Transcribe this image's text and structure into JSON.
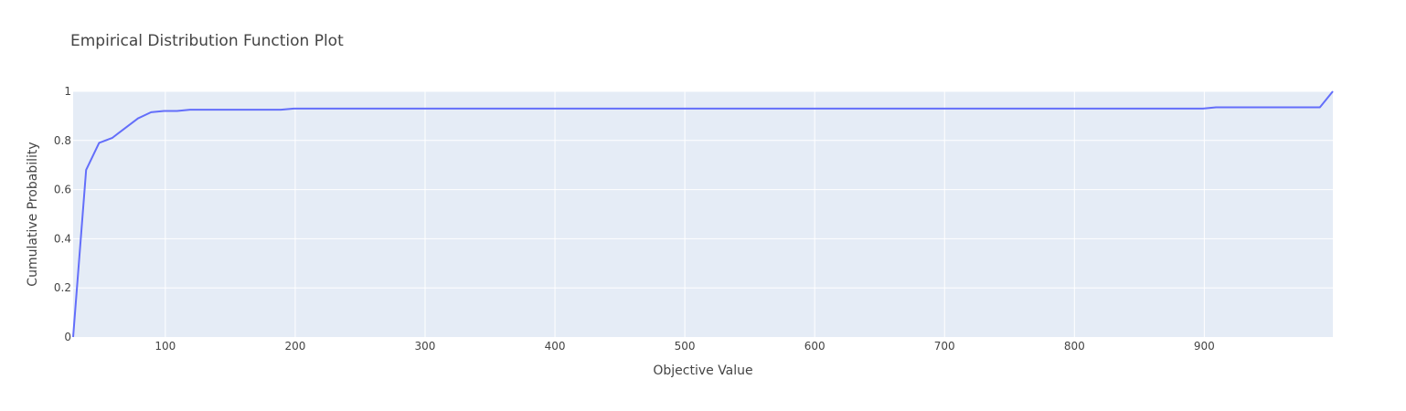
{
  "chart_data": {
    "type": "line",
    "title": "Empirical Distribution Function Plot",
    "xlabel": "Objective Value",
    "ylabel": "Cumulative Probability",
    "xlim": [
      29,
      999
    ],
    "ylim": [
      0,
      1
    ],
    "x_ticks": [
      100,
      200,
      300,
      400,
      500,
      600,
      700,
      800,
      900
    ],
    "y_ticks": [
      0,
      0.2,
      0.4,
      0.6,
      0.8,
      1
    ],
    "grid": true,
    "legend": "none",
    "series": [
      {
        "x": [
          29,
          39,
          49,
          59,
          69,
          79,
          89,
          99,
          109,
          119,
          129,
          139,
          149,
          159,
          169,
          179,
          189,
          199,
          209,
          219,
          229,
          239,
          249,
          259,
          269,
          279,
          289,
          299,
          309,
          319,
          329,
          339,
          349,
          359,
          369,
          379,
          389,
          399,
          409,
          419,
          429,
          439,
          449,
          459,
          469,
          479,
          489,
          499,
          509,
          519,
          529,
          539,
          549,
          559,
          569,
          579,
          589,
          599,
          609,
          619,
          629,
          639,
          649,
          659,
          669,
          679,
          689,
          699,
          709,
          719,
          729,
          739,
          749,
          759,
          769,
          779,
          789,
          799,
          809,
          819,
          829,
          839,
          849,
          859,
          869,
          879,
          889,
          899,
          909,
          919,
          929,
          939,
          949,
          959,
          969,
          979,
          989,
          999
        ],
        "y": [
          0.0,
          0.68,
          0.79,
          0.81,
          0.85,
          0.89,
          0.915,
          0.92,
          0.92,
          0.925,
          0.925,
          0.925,
          0.925,
          0.925,
          0.925,
          0.925,
          0.925,
          0.93,
          0.93,
          0.93,
          0.93,
          0.93,
          0.93,
          0.93,
          0.93,
          0.93,
          0.93,
          0.93,
          0.93,
          0.93,
          0.93,
          0.93,
          0.93,
          0.93,
          0.93,
          0.93,
          0.93,
          0.93,
          0.93,
          0.93,
          0.93,
          0.93,
          0.93,
          0.93,
          0.93,
          0.93,
          0.93,
          0.93,
          0.93,
          0.93,
          0.93,
          0.93,
          0.93,
          0.93,
          0.93,
          0.93,
          0.93,
          0.93,
          0.93,
          0.93,
          0.93,
          0.93,
          0.93,
          0.93,
          0.93,
          0.93,
          0.93,
          0.93,
          0.93,
          0.93,
          0.93,
          0.93,
          0.93,
          0.93,
          0.93,
          0.93,
          0.93,
          0.93,
          0.93,
          0.93,
          0.93,
          0.93,
          0.93,
          0.93,
          0.93,
          0.93,
          0.93,
          0.93,
          0.935,
          0.935,
          0.935,
          0.935,
          0.935,
          0.935,
          0.935,
          0.935,
          0.935,
          1.0
        ]
      }
    ]
  },
  "colors": {
    "plot_background": "#e5ecf6",
    "grid": "#ffffff",
    "line": "#636efa",
    "text": "#444444"
  }
}
